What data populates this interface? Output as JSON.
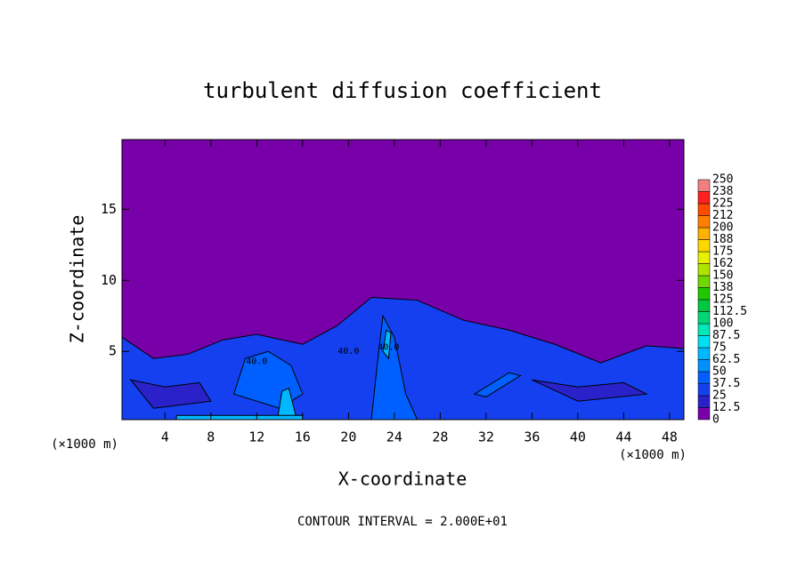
{
  "chart_data": {
    "type": "contour",
    "title": "turbulent diffusion coefficient",
    "xlabel": "X-coordinate",
    "ylabel": "Z-coordinate",
    "xunit": "(×1000 m)",
    "footer": "CONTOUR INTERVAL = 2.000E+01",
    "xlim": [
      0.25,
      49.25
    ],
    "ylim": [
      0.2,
      19.9
    ],
    "xticks": [
      4,
      8,
      12,
      16,
      20,
      24,
      28,
      32,
      36,
      40,
      44,
      48
    ],
    "yticks": [
      5,
      10,
      15
    ],
    "colorbar_levels": [
      0,
      12.5,
      25,
      37.5,
      50,
      62.5,
      75,
      87.5,
      100,
      112.5,
      125,
      {
        "value": 137.5,
        "label": "138"
      },
      150,
      {
        "value": 162.5,
        "label": "162"
      },
      175,
      {
        "value": 187.5,
        "label": "188"
      },
      200,
      {
        "value": 212.5,
        "label": "212"
      },
      225,
      {
        "value": 237.5,
        "label": "238"
      },
      250
    ],
    "colors": [
      "#7800a8",
      "#2a22c8",
      "#1440f0",
      "#0060ff",
      "#0090ff",
      "#00b8ff",
      "#00e0f0",
      "#00e8b8",
      "#00d878",
      "#00c840",
      "#20c800",
      "#70d800",
      "#b0e400",
      "#e8f000",
      "#ffd800",
      "#ffb000",
      "#ff8000",
      "#ff4a00",
      "#ff2020",
      "#f08080"
    ],
    "regions": [
      {
        "level": 30,
        "points": [
          [
            0.25,
            6
          ],
          [
            3,
            4.5
          ],
          [
            6,
            4.8
          ],
          [
            9,
            5.8
          ],
          [
            12,
            6.2
          ],
          [
            16,
            5.5
          ],
          [
            19,
            6.8
          ],
          [
            22,
            8.8
          ],
          [
            26,
            8.6
          ],
          [
            30,
            7.2
          ],
          [
            34,
            6.5
          ],
          [
            38,
            5.5
          ],
          [
            42,
            4.2
          ],
          [
            46,
            5.4
          ],
          [
            49.25,
            5.2
          ],
          [
            49.25,
            0.2
          ],
          [
            0.25,
            0.2
          ]
        ]
      },
      {
        "level": 20,
        "points": [
          [
            1,
            3
          ],
          [
            4,
            2.5
          ],
          [
            7,
            2.8
          ],
          [
            8,
            1.5
          ],
          [
            3,
            1
          ]
        ]
      },
      {
        "level": 20,
        "points": [
          [
            36,
            3
          ],
          [
            40,
            2.5
          ],
          [
            44,
            2.8
          ],
          [
            46,
            2
          ],
          [
            40,
            1.5
          ]
        ]
      },
      {
        "level": 45,
        "points": [
          [
            22,
            0.2
          ],
          [
            22.5,
            4
          ],
          [
            23,
            7.5
          ],
          [
            24,
            6
          ],
          [
            25,
            2
          ],
          [
            26,
            0.2
          ]
        ]
      },
      {
        "level": 45,
        "points": [
          [
            10,
            2
          ],
          [
            11,
            4.5
          ],
          [
            13,
            5
          ],
          [
            15,
            4
          ],
          [
            16,
            2
          ],
          [
            14,
            1
          ]
        ]
      },
      {
        "level": 45,
        "points": [
          [
            31,
            2
          ],
          [
            34,
            3.5
          ],
          [
            35,
            3.3
          ],
          [
            32,
            1.8
          ]
        ]
      },
      {
        "level": 70,
        "points": [
          [
            13.8,
            0.2
          ],
          [
            14.2,
            2.2
          ],
          [
            14.8,
            2.4
          ],
          [
            15.5,
            0.2
          ]
        ]
      },
      {
        "level": 70,
        "points": [
          [
            5,
            0.2
          ],
          [
            5,
            0.5
          ],
          [
            16,
            0.5
          ],
          [
            16,
            0.2
          ]
        ]
      },
      {
        "level": 70,
        "points": [
          [
            23,
            5
          ],
          [
            23.3,
            6.5
          ],
          [
            23.7,
            6.3
          ],
          [
            23.5,
            4.5
          ]
        ]
      }
    ],
    "contour_labels": [
      {
        "x": 12,
        "z": 4.3,
        "label": "40.0"
      },
      {
        "x": 20,
        "z": 5,
        "label": "40.0"
      },
      {
        "x": 23.5,
        "z": 5.3,
        "label": "40.0"
      }
    ]
  }
}
